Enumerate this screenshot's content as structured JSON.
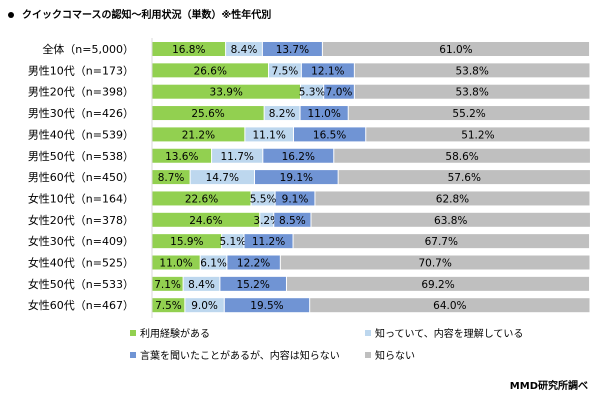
{
  "title": "クイックコマースの認知～利用状況（単数）※性年代別",
  "source": "MMD研究所調べ",
  "chart_data": {
    "type": "bar",
    "orientation": "horizontal",
    "stacked": true,
    "xlim": [
      0,
      100
    ],
    "grid": false,
    "legend_position": "bottom",
    "categories": [
      "全体（n=5,000）",
      "男性10代（n=173）",
      "男性20代（n=398）",
      "男性30代（n=426）",
      "男性40代（n=539）",
      "男性50代（n=538）",
      "男性60代（n=450）",
      "女性10代（n=164）",
      "女性20代（n=378）",
      "女性30代（n=409）",
      "女性40代（n=525）",
      "女性50代（n=533）",
      "女性60代（n=467）"
    ],
    "series": [
      {
        "name": "利用経験がある",
        "color": "#92d050",
        "values": [
          16.8,
          26.6,
          33.9,
          25.6,
          21.2,
          13.6,
          8.7,
          22.6,
          24.6,
          15.9,
          11.0,
          7.1,
          7.5
        ]
      },
      {
        "name": "知っていて、内容を理解している",
        "color": "#bdd7ee",
        "values": [
          8.4,
          7.5,
          5.3,
          8.2,
          11.1,
          11.7,
          14.7,
          5.5,
          3.2,
          5.1,
          6.1,
          8.4,
          9.0
        ]
      },
      {
        "name": "言葉を聞いたことがあるが、内容は知らない",
        "color": "#7094d4",
        "values": [
          13.7,
          12.1,
          7.0,
          11.0,
          16.5,
          16.2,
          19.1,
          9.1,
          8.5,
          11.2,
          12.2,
          15.2,
          19.5
        ]
      },
      {
        "name": "知らない",
        "color": "#bfbfbf",
        "values": [
          61.0,
          53.8,
          53.8,
          55.2,
          51.2,
          58.6,
          57.6,
          62.8,
          63.8,
          67.7,
          70.7,
          69.2,
          64.0
        ]
      }
    ]
  }
}
